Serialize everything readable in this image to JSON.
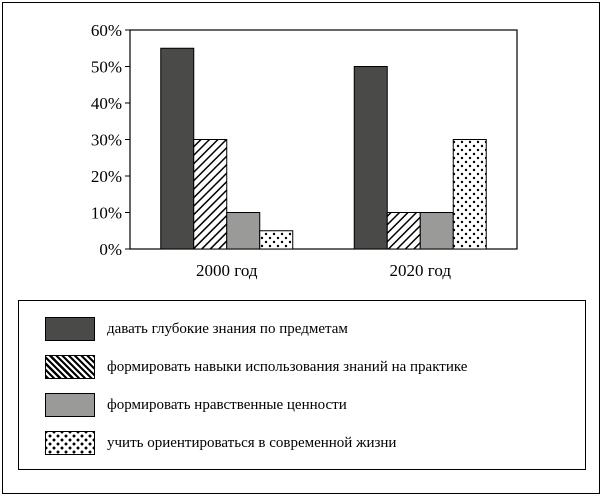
{
  "chart_data": {
    "type": "bar",
    "categories": [
      "2000 год",
      "2020 год"
    ],
    "ylim": [
      0,
      60
    ],
    "yticks": [
      "0%",
      "10%",
      "20%",
      "30%",
      "40%",
      "50%",
      "60%"
    ],
    "ytick_values": [
      0,
      10,
      20,
      30,
      40,
      50,
      60
    ],
    "grid": false,
    "legend_position": "bottom",
    "series": [
      {
        "name": "давать глубокие знания по предметам",
        "values": [
          55,
          50
        ],
        "pattern": "solid-dark",
        "color": "#4a4a48"
      },
      {
        "name": "формировать навыки использования знаний на практике",
        "values": [
          30,
          10
        ],
        "pattern": "diagonal-hatch",
        "color": "#000000"
      },
      {
        "name": "формировать нравственные ценности",
        "values": [
          10,
          10
        ],
        "pattern": "solid-gray",
        "color": "#9a9a98"
      },
      {
        "name": "учить ориентироваться в современной жизни",
        "values": [
          5,
          30
        ],
        "pattern": "dots",
        "color": "#000000"
      }
    ]
  }
}
